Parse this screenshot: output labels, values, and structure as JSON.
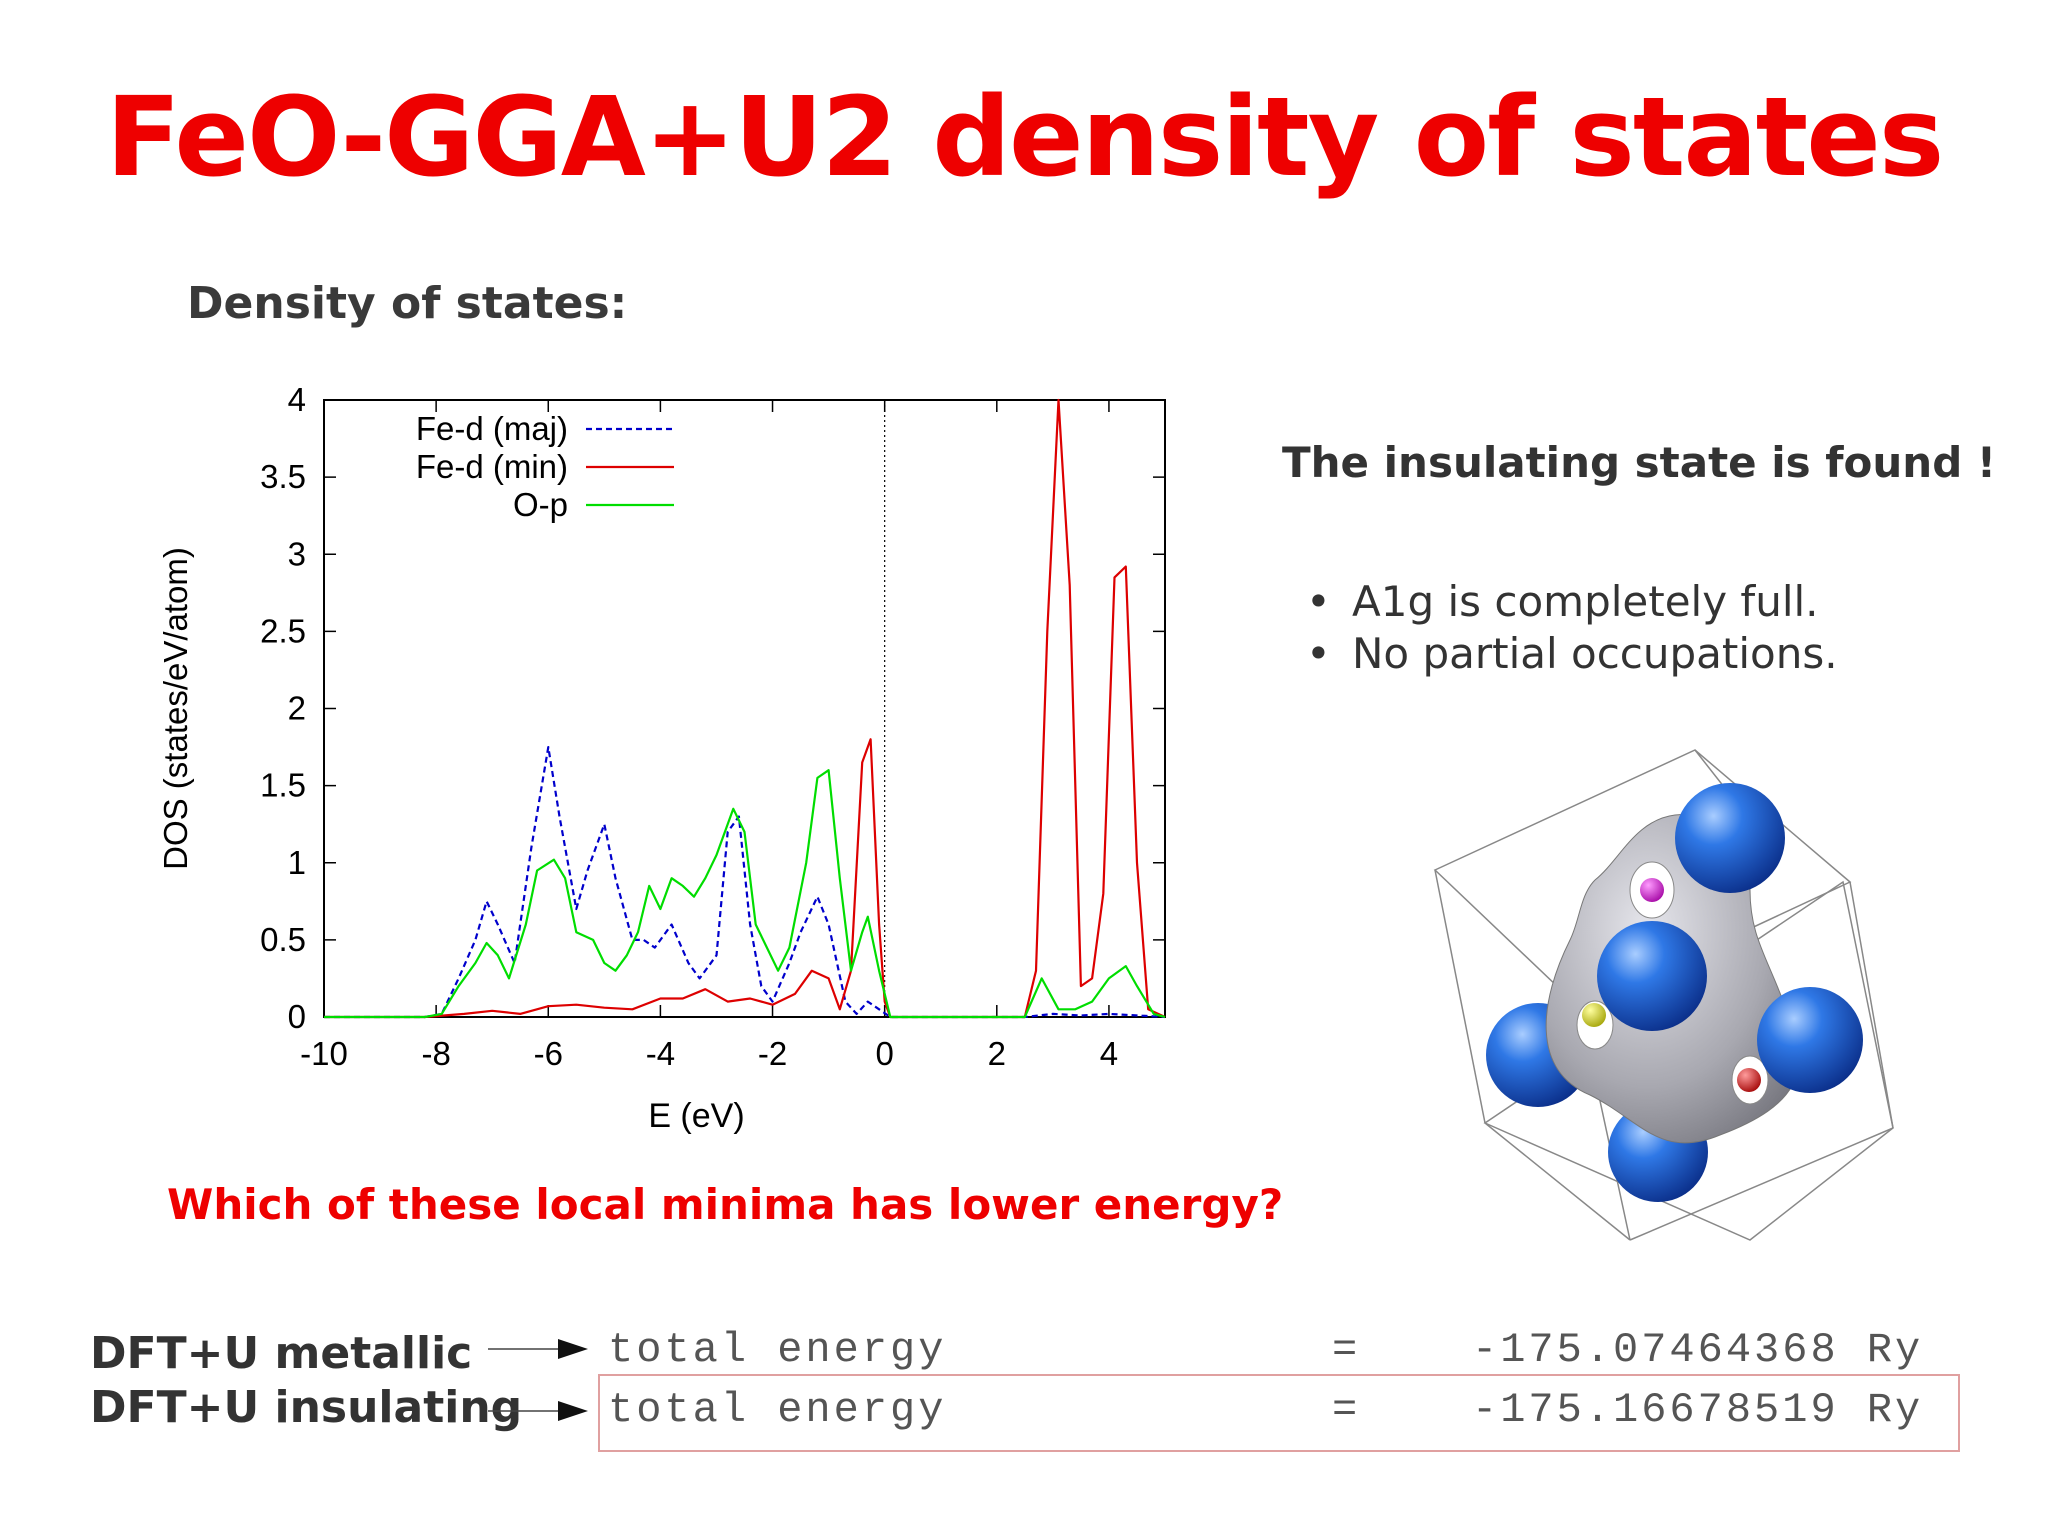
{
  "slide": {
    "title": "FeO-GGA+U2 density of states",
    "subtitle": "Density of states:",
    "insulating_statement": "The insulating state is found !",
    "bullets": [
      "A1g is completely full.",
      "No partial occupations."
    ],
    "question": "Which of these local minima has lower energy?"
  },
  "energies": [
    {
      "label": "DFT+U metallic",
      "quantity": "total energy",
      "equals": "=",
      "value": "-175.07464368 Ry",
      "highlighted": false
    },
    {
      "label": "DFT+U insulating",
      "quantity": "total energy",
      "equals": "=",
      "value": "-175.16678519 Ry",
      "highlighted": true
    }
  ],
  "colors": {
    "title": "#ee0000",
    "fe_d_maj": "#0000cc",
    "fe_d_min": "#dd0000",
    "o_p": "#00dd00",
    "sphere": "#1f5fd0",
    "isosurface": "#a8a8b0"
  },
  "chart_data": {
    "type": "line",
    "xlabel": "E (eV)",
    "ylabel": "DOS (states/eV/atom)",
    "xlim": [
      -10,
      5
    ],
    "ylim": [
      0,
      4
    ],
    "xticks": [
      -10,
      -8,
      -6,
      -4,
      -2,
      0,
      2,
      4
    ],
    "yticks": [
      0,
      0.5,
      1,
      1.5,
      2,
      2.5,
      3,
      3.5,
      4
    ],
    "xtick_labels": [
      "-10",
      "-8",
      "-6",
      "-4",
      "-2",
      "0",
      "2",
      "4"
    ],
    "ytick_labels": [
      "0",
      "0.5",
      "1",
      "1.5",
      "2",
      "2.5",
      "3",
      "3.5",
      "4"
    ],
    "fermi_line_x": 0,
    "legend_position": "top-left",
    "series": [
      {
        "name": "Fe-d (maj)",
        "style": "dashed",
        "x": [
          -10,
          -8.2,
          -7.9,
          -7.6,
          -7.3,
          -7.1,
          -6.9,
          -6.6,
          -6.3,
          -6.0,
          -5.8,
          -5.5,
          -5.3,
          -5.0,
          -4.8,
          -4.5,
          -4.3,
          -4.1,
          -3.8,
          -3.5,
          -3.3,
          -3.0,
          -2.8,
          -2.6,
          -2.4,
          -2.2,
          -2.0,
          -1.7,
          -1.5,
          -1.2,
          -1.0,
          -0.7,
          -0.5,
          -0.3,
          -0.1,
          0.1,
          2.5,
          3.0,
          3.5,
          4.0,
          5.0
        ],
        "values": [
          0,
          0,
          0.02,
          0.25,
          0.5,
          0.75,
          0.6,
          0.35,
          1.1,
          1.75,
          1.3,
          0.7,
          0.95,
          1.25,
          0.9,
          0.5,
          0.5,
          0.45,
          0.6,
          0.35,
          0.25,
          0.4,
          1.2,
          1.3,
          0.6,
          0.2,
          0.1,
          0.35,
          0.55,
          0.78,
          0.6,
          0.1,
          0.02,
          0.1,
          0.05,
          0,
          0,
          0.02,
          0.01,
          0.02,
          0
        ]
      },
      {
        "name": "Fe-d (min)",
        "style": "solid",
        "x": [
          -10,
          -8.2,
          -7.5,
          -7.0,
          -6.5,
          -6.0,
          -5.5,
          -5.0,
          -4.5,
          -4.0,
          -3.6,
          -3.2,
          -2.8,
          -2.4,
          -2.0,
          -1.6,
          -1.3,
          -1.0,
          -0.8,
          -0.6,
          -0.4,
          -0.25,
          -0.1,
          0.0,
          0.1,
          2.5,
          2.7,
          2.9,
          3.1,
          3.3,
          3.5,
          3.7,
          3.9,
          4.1,
          4.3,
          4.5,
          4.7,
          5.0
        ],
        "values": [
          0,
          0,
          0.02,
          0.04,
          0.02,
          0.07,
          0.08,
          0.06,
          0.05,
          0.12,
          0.12,
          0.18,
          0.1,
          0.12,
          0.08,
          0.15,
          0.3,
          0.25,
          0.05,
          0.3,
          1.65,
          1.8,
          0.6,
          0.1,
          0,
          0,
          0.3,
          2.5,
          4.0,
          2.8,
          0.2,
          0.25,
          0.8,
          2.85,
          2.92,
          1.0,
          0.05,
          0
        ]
      },
      {
        "name": "O-p",
        "style": "solid",
        "x": [
          -10,
          -8.2,
          -7.9,
          -7.6,
          -7.3,
          -7.1,
          -6.9,
          -6.7,
          -6.4,
          -6.2,
          -5.9,
          -5.7,
          -5.5,
          -5.2,
          -5.0,
          -4.8,
          -4.6,
          -4.4,
          -4.2,
          -4.0,
          -3.8,
          -3.6,
          -3.4,
          -3.2,
          -3.0,
          -2.7,
          -2.5,
          -2.3,
          -2.1,
          -1.9,
          -1.7,
          -1.4,
          -1.2,
          -1.0,
          -0.8,
          -0.6,
          -0.4,
          -0.3,
          -0.1,
          0.1,
          2.5,
          2.8,
          3.1,
          3.4,
          3.7,
          4.0,
          4.3,
          4.5,
          4.8,
          5.0
        ],
        "values": [
          0,
          0,
          0.02,
          0.2,
          0.35,
          0.48,
          0.4,
          0.25,
          0.6,
          0.95,
          1.02,
          0.9,
          0.55,
          0.5,
          0.35,
          0.3,
          0.4,
          0.55,
          0.85,
          0.7,
          0.9,
          0.85,
          0.78,
          0.9,
          1.05,
          1.35,
          1.2,
          0.6,
          0.45,
          0.3,
          0.45,
          1.0,
          1.55,
          1.6,
          0.9,
          0.3,
          0.55,
          0.65,
          0.3,
          0,
          0,
          0.25,
          0.05,
          0.05,
          0.1,
          0.25,
          0.33,
          0.2,
          0.02,
          0
        ]
      }
    ]
  }
}
